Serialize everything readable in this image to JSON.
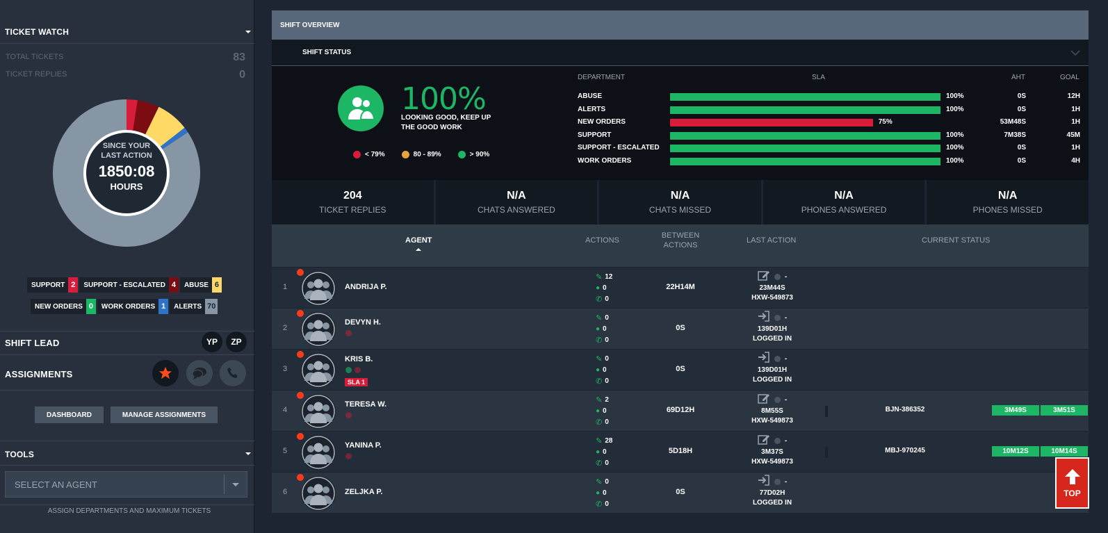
{
  "sidebar": {
    "ticket_watch": {
      "title": "TICKET WATCH",
      "total_tickets_label": "TOTAL TICKETS",
      "total_tickets": "83",
      "ticket_replies_label": "TICKET REPLIES",
      "ticket_replies": "0",
      "donut_line1": "SINCE YOUR",
      "donut_line2": "LAST ACTION",
      "donut_time": "1850:08",
      "donut_unit": "HOURS",
      "donut_segments": [
        {
          "name": "support",
          "value": 2,
          "color": "#d91c3a"
        },
        {
          "name": "support-escalated",
          "value": 4,
          "color": "#7a0c12"
        },
        {
          "name": "abuse",
          "value": 6,
          "color": "#ffd966"
        },
        {
          "name": "work-orders",
          "value": 1,
          "color": "#2d74c8"
        },
        {
          "name": "alerts",
          "value": 70,
          "color": "#8796a5"
        }
      ]
    },
    "chips": [
      {
        "label": "SUPPORT",
        "count": "2",
        "color": "#d91c3a",
        "text": "#fff"
      },
      {
        "label": "SUPPORT - ESCALATED",
        "count": "4",
        "color": "#7a0c12",
        "text": "#fff"
      },
      {
        "label": "ABUSE",
        "count": "6",
        "color": "#ffd966",
        "text": "#1b222b"
      },
      {
        "label": "NEW ORDERS",
        "count": "0",
        "color": "#1db664",
        "text": "#fff"
      },
      {
        "label": "WORK ORDERS",
        "count": "1",
        "color": "#2d74c8",
        "text": "#fff"
      },
      {
        "label": "ALERTS",
        "count": "70",
        "color": "#8796a5",
        "text": "#1b222b"
      }
    ],
    "shift_lead": {
      "title": "SHIFT LEAD",
      "leads": [
        "YP",
        "ZP"
      ]
    },
    "assignments": {
      "title": "ASSIGNMENTS",
      "icons": [
        "star-icon",
        "chat-icon",
        "phone-icon"
      ]
    },
    "dashboard_button": "DASHBOARD",
    "manage_button": "MANAGE ASSIGNMENTS",
    "tools": {
      "title": "TOOLS",
      "select_placeholder": "SELECT AN AGENT",
      "footer": "ASSIGN DEPARTMENTS AND MAXIMUM TICKETS"
    }
  },
  "main": {
    "overview_title": "SHIFT OVERVIEW",
    "shift_status_title": "SHIFT STATUS",
    "sla_percent": "100%",
    "sla_message_line1": "LOOKING GOOD, KEEP UP",
    "sla_message_line2": "THE GOOD WORK",
    "legend": [
      {
        "label": "< 79%",
        "color": "#d91c3a"
      },
      {
        "label": "80 - 89%",
        "color": "#e8a23a"
      },
      {
        "label": "> 90%",
        "color": "#1db664"
      }
    ],
    "sla_table": {
      "headers": {
        "department": "DEPARTMENT",
        "sla": "SLA",
        "aht": "AHT",
        "goal": "GOAL"
      },
      "rows": [
        {
          "dept": "ABUSE",
          "pct_text": "100%",
          "pct": 100,
          "aht": "0S",
          "goal": "12H",
          "status": "good"
        },
        {
          "dept": "ALERTS",
          "pct_text": "100%",
          "pct": 100,
          "aht": "0S",
          "goal": "1H",
          "status": "good"
        },
        {
          "dept": "NEW ORDERS",
          "pct_text": "75%",
          "pct": 75,
          "aht": "53M48S",
          "goal": "1H",
          "status": "bad"
        },
        {
          "dept": "SUPPORT",
          "pct_text": "100%",
          "pct": 100,
          "aht": "7M38S",
          "goal": "45M",
          "status": "good"
        },
        {
          "dept": "SUPPORT - ESCALATED",
          "pct_text": "100%",
          "pct": 100,
          "aht": "0S",
          "goal": "1H",
          "status": "good"
        },
        {
          "dept": "WORK ORDERS",
          "pct_text": "100%",
          "pct": 100,
          "aht": "0S",
          "goal": "4H",
          "status": "good"
        }
      ]
    },
    "kpis": [
      {
        "value": "204",
        "label": "TICKET REPLIES"
      },
      {
        "value": "N/A",
        "label": "CHATS ANSWERED"
      },
      {
        "value": "N/A",
        "label": "CHATS MISSED"
      },
      {
        "value": "N/A",
        "label": "PHONES ANSWERED"
      },
      {
        "value": "N/A",
        "label": "PHONES MISSED"
      }
    ],
    "agents_table": {
      "headers": {
        "agent": "AGENT",
        "actions": "ACTIONS",
        "between1": "BETWEEN",
        "between2": "ACTIONS",
        "last_action": "LAST ACTION",
        "current_status": "CURRENT STATUS"
      },
      "rows": [
        {
          "num": "1",
          "name": "ANDRIJA P.",
          "edits": "12",
          "chats": "0",
          "calls": "0",
          "between": "22H14M",
          "last_icon": "edit-icon",
          "last_time": "23M44S",
          "last_ref": "HXW-549873",
          "badges": [],
          "sla": "",
          "ticket": "",
          "t1": "",
          "t2": ""
        },
        {
          "num": "2",
          "name": "DEVYN H.",
          "edits": "0",
          "chats": "0",
          "calls": "0",
          "between": "0S",
          "last_icon": "login-icon",
          "last_time": "139D01H",
          "last_ref": "LOGGED IN",
          "badges": [
            "red"
          ],
          "sla": "",
          "ticket": "",
          "t1": "",
          "t2": ""
        },
        {
          "num": "3",
          "name": "KRIS B.",
          "edits": "0",
          "chats": "0",
          "calls": "0",
          "between": "0S",
          "last_icon": "login-icon",
          "last_time": "139D01H",
          "last_ref": "LOGGED IN",
          "badges": [
            "green",
            "red"
          ],
          "sla": "SLA 1",
          "ticket": "",
          "t1": "",
          "t2": ""
        },
        {
          "num": "4",
          "name": "TERESA W.",
          "edits": "2",
          "chats": "0",
          "calls": "0",
          "between": "69D12H",
          "last_icon": "edit-icon",
          "last_time": "8M55S",
          "last_ref": "HXW-549873",
          "badges": [
            "red"
          ],
          "sla": "",
          "ticket": "BJN-386352",
          "t1": "3M49S",
          "t2": "3M51S"
        },
        {
          "num": "5",
          "name": "YANINA P.",
          "edits": "28",
          "chats": "0",
          "calls": "0",
          "between": "5D18H",
          "last_icon": "edit-icon",
          "last_time": "3M37S",
          "last_ref": "HXW-549873",
          "badges": [
            "red"
          ],
          "sla": "",
          "ticket": "MBJ-970245",
          "t1": "10M12S",
          "t2": "10M14S"
        },
        {
          "num": "6",
          "name": "ZELJKA P.",
          "edits": "0",
          "chats": "0",
          "calls": "0",
          "between": "0S",
          "last_icon": "login-icon",
          "last_time": "77D02H",
          "last_ref": "LOGGED IN",
          "badges": [],
          "sla": "",
          "ticket": "",
          "t1": "",
          "t2": ""
        }
      ]
    },
    "top_button": "TOP"
  }
}
